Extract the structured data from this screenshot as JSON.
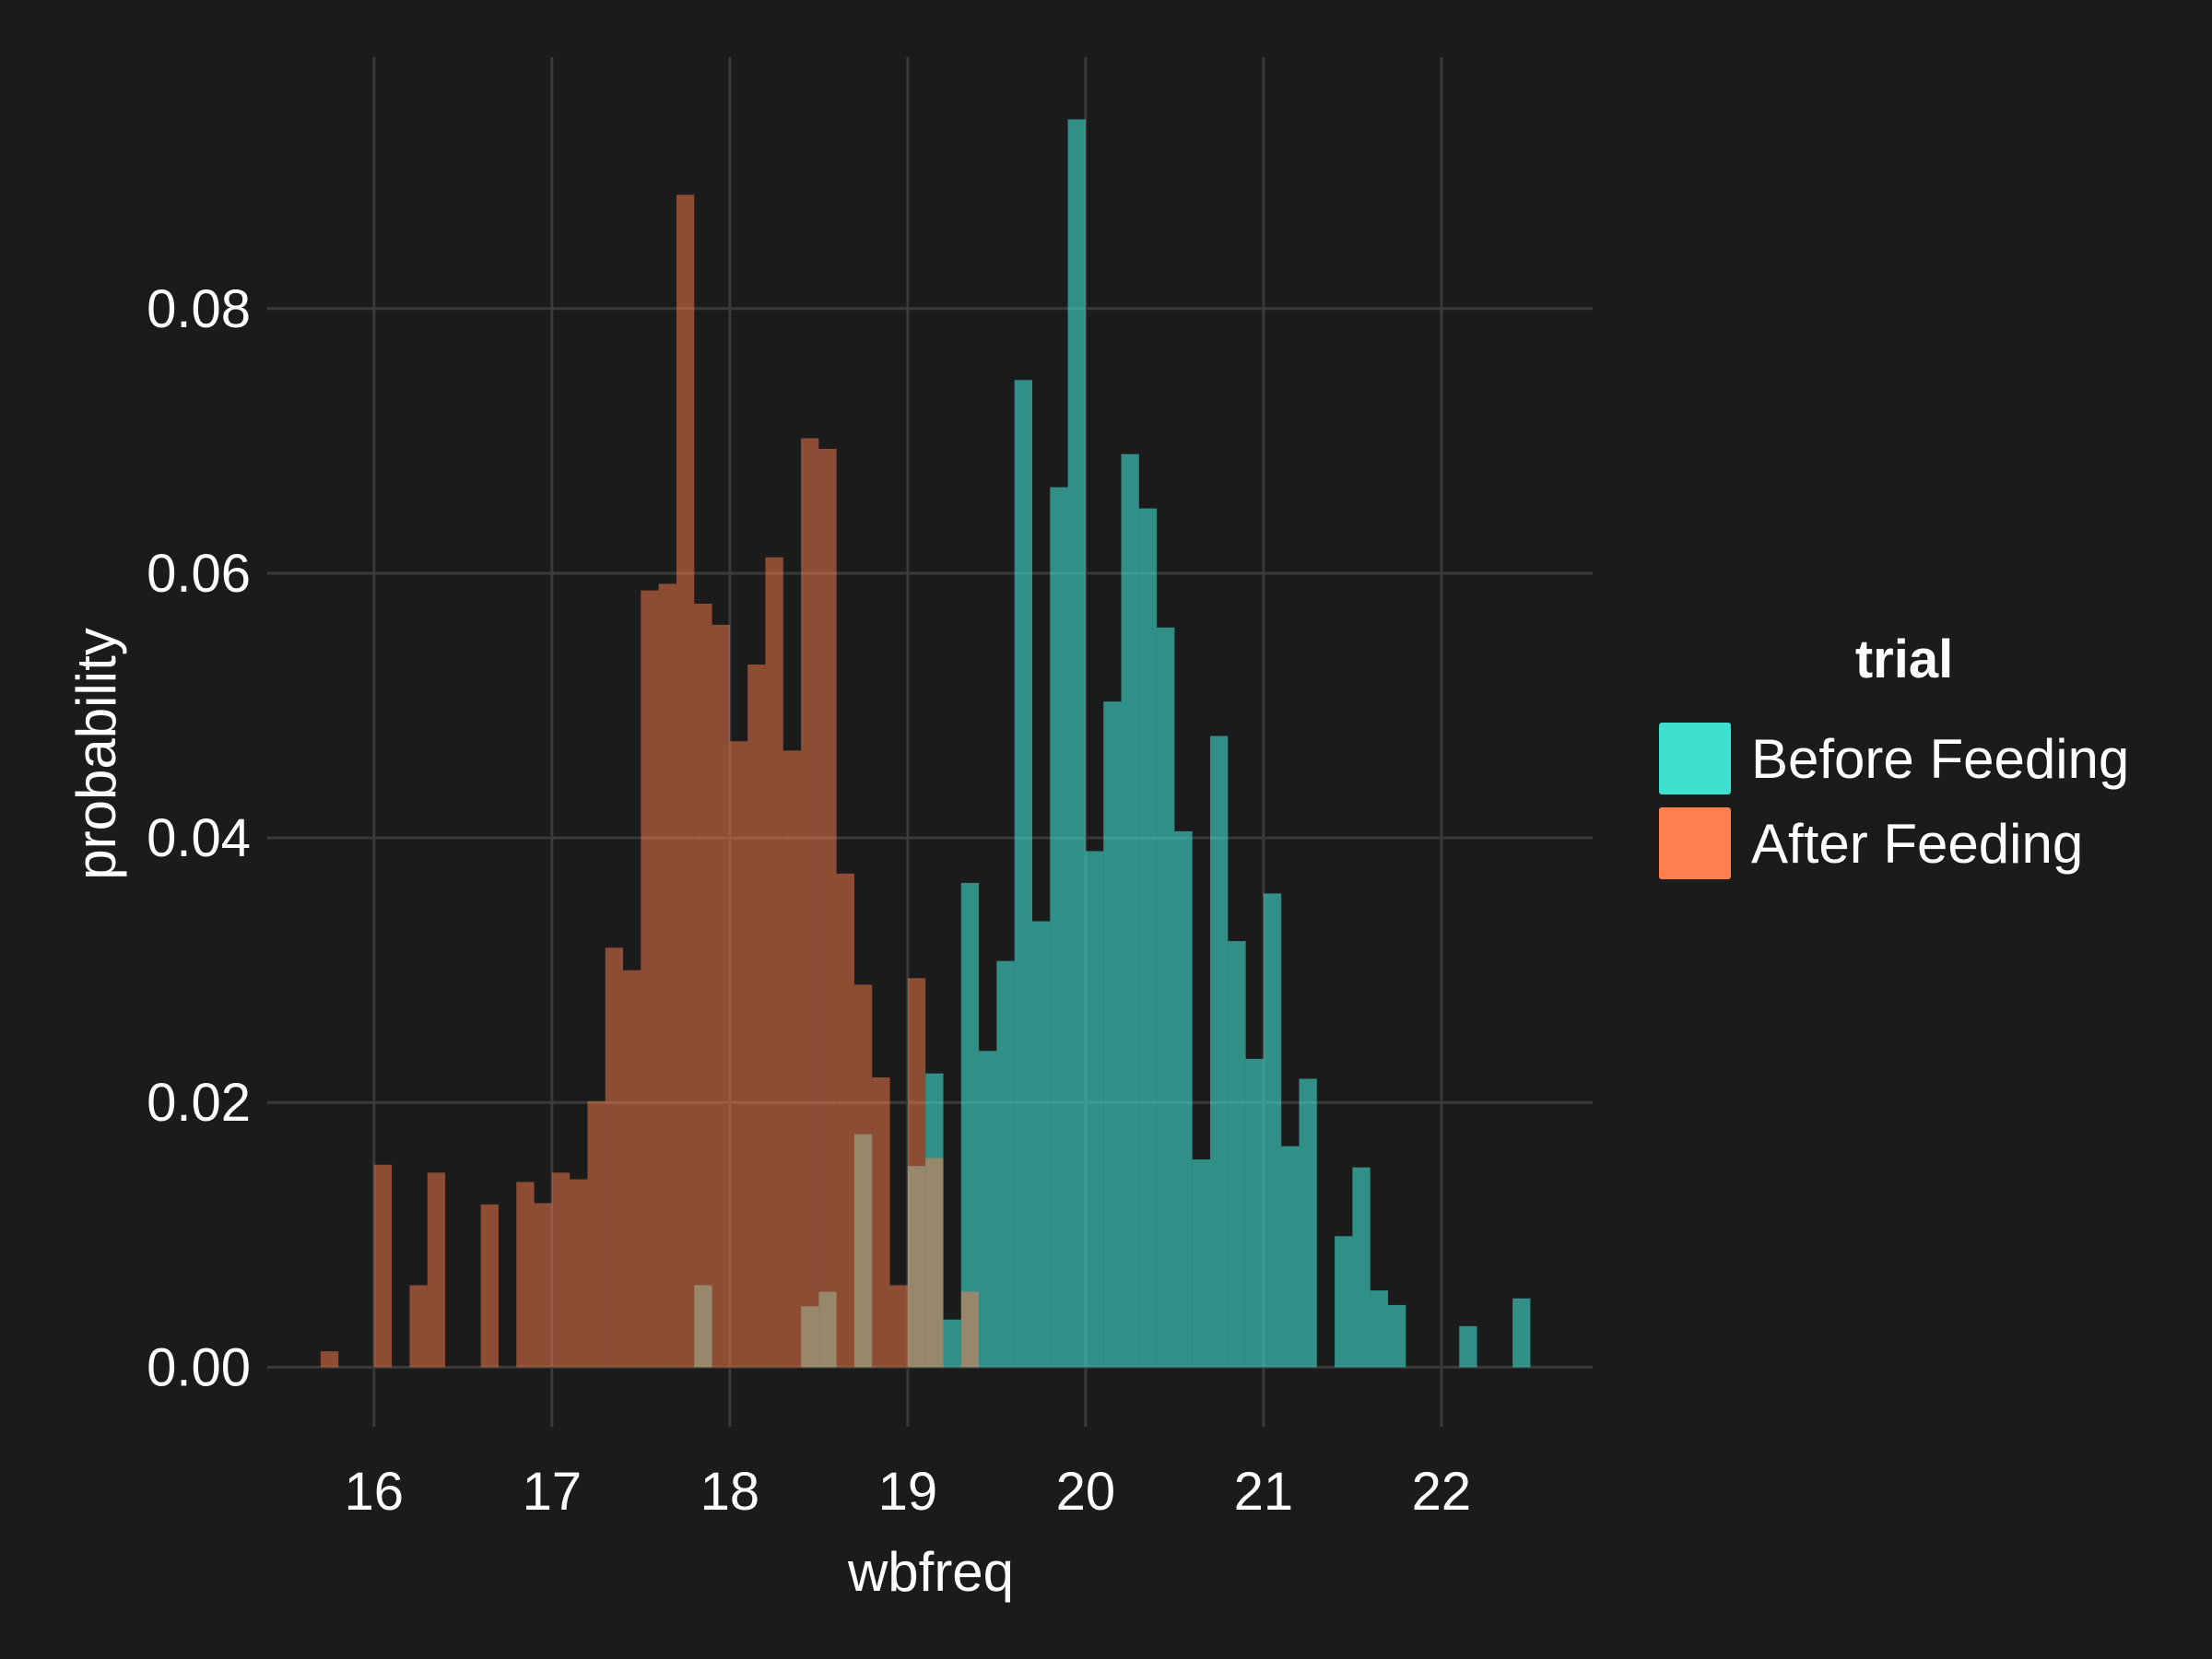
{
  "chart_data": {
    "type": "histogram",
    "xlabel": "wbfreq",
    "ylabel": "probability",
    "xlim": [
      15.4,
      22.85
    ],
    "ylim": [
      -0.0045,
      0.099
    ],
    "xticks": [
      16,
      17,
      18,
      19,
      20,
      21,
      22
    ],
    "xtick_labels": [
      "16",
      "17",
      "18",
      "19",
      "20",
      "21",
      "22"
    ],
    "yticks": [
      0.0,
      0.02,
      0.04,
      0.06,
      0.08
    ],
    "ytick_labels": [
      "0.00",
      "0.02",
      "0.04",
      "0.06",
      "0.08"
    ],
    "grid": true,
    "bin_width": 0.1,
    "legend": {
      "title": "trial",
      "position": "right",
      "entries": [
        {
          "label": "Before Feeding",
          "color": "#40e0d0"
        },
        {
          "label": "After Feeding",
          "color": "#ff7f50"
        }
      ]
    },
    "series": [
      {
        "name": "Before Feeding",
        "color": "#40e0d0",
        "opacity": 0.6,
        "bins": [
          {
            "x0": 17.8,
            "x1": 17.9,
            "y": 0.0062
          },
          {
            "x0": 18.4,
            "x1": 18.5,
            "y": 0.0046
          },
          {
            "x0": 18.5,
            "x1": 18.6,
            "y": 0.0057
          },
          {
            "x0": 18.7,
            "x1": 18.8,
            "y": 0.0176
          },
          {
            "x0": 19.0,
            "x1": 19.1,
            "y": 0.0152
          },
          {
            "x0": 19.1,
            "x1": 19.2,
            "y": 0.0222
          },
          {
            "x0": 19.2,
            "x1": 19.3,
            "y": 0.0036
          },
          {
            "x0": 19.3,
            "x1": 19.4,
            "y": 0.0366
          },
          {
            "x0": 19.4,
            "x1": 19.5,
            "y": 0.0239
          },
          {
            "x0": 19.5,
            "x1": 19.6,
            "y": 0.0307
          },
          {
            "x0": 19.6,
            "x1": 19.7,
            "y": 0.0746
          },
          {
            "x0": 19.7,
            "x1": 19.8,
            "y": 0.0337
          },
          {
            "x0": 19.8,
            "x1": 19.9,
            "y": 0.0665
          },
          {
            "x0": 19.9,
            "x1": 20.0,
            "y": 0.0943
          },
          {
            "x0": 20.0,
            "x1": 20.1,
            "y": 0.039
          },
          {
            "x0": 20.1,
            "x1": 20.2,
            "y": 0.0503
          },
          {
            "x0": 20.2,
            "x1": 20.3,
            "y": 0.069
          },
          {
            "x0": 20.3,
            "x1": 20.4,
            "y": 0.0649
          },
          {
            "x0": 20.4,
            "x1": 20.5,
            "y": 0.0559
          },
          {
            "x0": 20.5,
            "x1": 20.6,
            "y": 0.0405
          },
          {
            "x0": 20.6,
            "x1": 20.7,
            "y": 0.0157
          },
          {
            "x0": 20.7,
            "x1": 20.8,
            "y": 0.0477
          },
          {
            "x0": 20.8,
            "x1": 20.9,
            "y": 0.0322
          },
          {
            "x0": 20.9,
            "x1": 21.0,
            "y": 0.0233
          },
          {
            "x0": 21.0,
            "x1": 21.1,
            "y": 0.0358
          },
          {
            "x0": 21.1,
            "x1": 21.2,
            "y": 0.0167
          },
          {
            "x0": 21.2,
            "x1": 21.3,
            "y": 0.0218
          },
          {
            "x0": 21.4,
            "x1": 21.5,
            "y": 0.0099
          },
          {
            "x0": 21.5,
            "x1": 21.6,
            "y": 0.0151
          },
          {
            "x0": 21.6,
            "x1": 21.7,
            "y": 0.0058
          },
          {
            "x0": 21.7,
            "x1": 21.8,
            "y": 0.0047
          },
          {
            "x0": 22.1,
            "x1": 22.2,
            "y": 0.0031
          },
          {
            "x0": 22.4,
            "x1": 22.5,
            "y": 0.0052
          }
        ]
      },
      {
        "name": "After Feeding",
        "color": "#ff7f50",
        "opacity": 0.5,
        "bins": [
          {
            "x0": 15.7,
            "x1": 15.8,
            "y": 0.0012
          },
          {
            "x0": 16.0,
            "x1": 16.1,
            "y": 0.0153
          },
          {
            "x0": 16.2,
            "x1": 16.3,
            "y": 0.0062
          },
          {
            "x0": 16.3,
            "x1": 16.4,
            "y": 0.0147
          },
          {
            "x0": 16.6,
            "x1": 16.7,
            "y": 0.0123
          },
          {
            "x0": 16.8,
            "x1": 16.9,
            "y": 0.014
          },
          {
            "x0": 16.9,
            "x1": 17.0,
            "y": 0.0124
          },
          {
            "x0": 17.0,
            "x1": 17.1,
            "y": 0.0147
          },
          {
            "x0": 17.1,
            "x1": 17.2,
            "y": 0.0142
          },
          {
            "x0": 17.2,
            "x1": 17.3,
            "y": 0.0201
          },
          {
            "x0": 17.3,
            "x1": 17.4,
            "y": 0.0317
          },
          {
            "x0": 17.4,
            "x1": 17.5,
            "y": 0.03
          },
          {
            "x0": 17.5,
            "x1": 17.6,
            "y": 0.0587
          },
          {
            "x0": 17.6,
            "x1": 17.7,
            "y": 0.0592
          },
          {
            "x0": 17.7,
            "x1": 17.8,
            "y": 0.0886
          },
          {
            "x0": 17.8,
            "x1": 17.9,
            "y": 0.0577
          },
          {
            "x0": 17.9,
            "x1": 18.0,
            "y": 0.0561
          },
          {
            "x0": 18.0,
            "x1": 18.1,
            "y": 0.0473
          },
          {
            "x0": 18.1,
            "x1": 18.2,
            "y": 0.0531
          },
          {
            "x0": 18.2,
            "x1": 18.3,
            "y": 0.0612
          },
          {
            "x0": 18.3,
            "x1": 18.4,
            "y": 0.0466
          },
          {
            "x0": 18.4,
            "x1": 18.5,
            "y": 0.0702
          },
          {
            "x0": 18.5,
            "x1": 18.6,
            "y": 0.0694
          },
          {
            "x0": 18.6,
            "x1": 18.7,
            "y": 0.0373
          },
          {
            "x0": 18.7,
            "x1": 18.8,
            "y": 0.0289
          },
          {
            "x0": 18.8,
            "x1": 18.9,
            "y": 0.0219
          },
          {
            "x0": 18.9,
            "x1": 19.0,
            "y": 0.0062
          },
          {
            "x0": 19.0,
            "x1": 19.1,
            "y": 0.0294
          },
          {
            "x0": 19.1,
            "x1": 19.2,
            "y": 0.0158
          },
          {
            "x0": 19.3,
            "x1": 19.4,
            "y": 0.0057
          }
        ]
      }
    ]
  }
}
